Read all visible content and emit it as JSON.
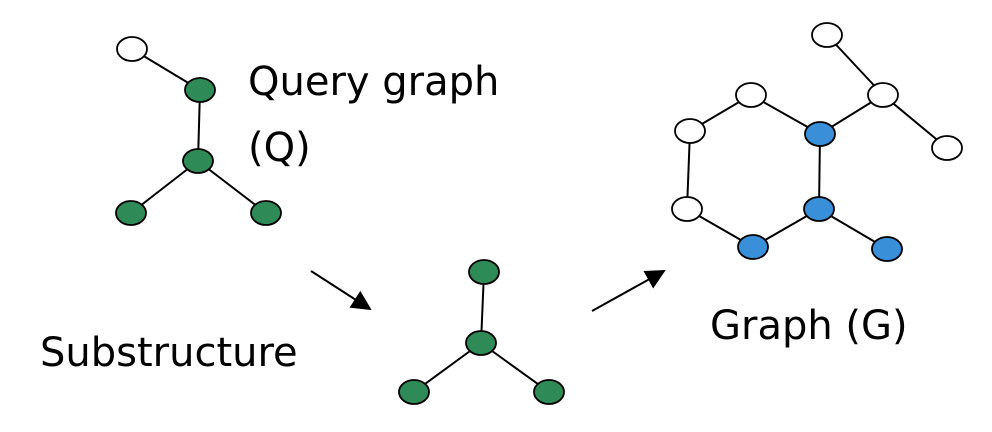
{
  "labels": {
    "query_line1": "Query graph",
    "query_line2": "(Q)",
    "substructure": "Substructure",
    "graph": "Graph (G)"
  },
  "colors": {
    "empty_node": "#ffffff",
    "query_node": "#2e8b57",
    "match_node": "#3a8fd9",
    "edge": "#000000",
    "arrow": "#000000"
  },
  "graphs": {
    "query": {
      "nodes": [
        {
          "id": "q-top",
          "role": "empty"
        },
        {
          "id": "q-upper",
          "role": "query"
        },
        {
          "id": "q-center",
          "role": "query"
        },
        {
          "id": "q-left",
          "role": "query"
        },
        {
          "id": "q-right",
          "role": "query"
        }
      ],
      "edges": [
        [
          "q-top",
          "q-upper"
        ],
        [
          "q-upper",
          "q-center"
        ],
        [
          "q-center",
          "q-left"
        ],
        [
          "q-center",
          "q-right"
        ]
      ]
    },
    "substructure": {
      "nodes": [
        {
          "id": "s-top",
          "role": "query"
        },
        {
          "id": "s-center",
          "role": "query"
        },
        {
          "id": "s-left",
          "role": "query"
        },
        {
          "id": "s-right",
          "role": "query"
        }
      ],
      "edges": [
        [
          "s-top",
          "s-center"
        ],
        [
          "s-center",
          "s-left"
        ],
        [
          "s-center",
          "s-right"
        ]
      ]
    },
    "target": {
      "nodes": [
        {
          "id": "g-top",
          "role": "empty"
        },
        {
          "id": "g-upper-left",
          "role": "empty"
        },
        {
          "id": "g-lower-left",
          "role": "empty"
        },
        {
          "id": "g-upper-right",
          "role": "match"
        },
        {
          "id": "g-lower-right",
          "role": "match"
        },
        {
          "id": "g-bottom",
          "role": "match"
        },
        {
          "id": "g-tail",
          "role": "match"
        },
        {
          "id": "g-branch",
          "role": "empty"
        },
        {
          "id": "g-branch-up",
          "role": "empty"
        },
        {
          "id": "g-branch-down",
          "role": "empty"
        }
      ],
      "edges": [
        [
          "g-top",
          "g-upper-left"
        ],
        [
          "g-upper-left",
          "g-lower-left"
        ],
        [
          "g-lower-left",
          "g-bottom"
        ],
        [
          "g-bottom",
          "g-lower-right"
        ],
        [
          "g-lower-right",
          "g-upper-right"
        ],
        [
          "g-upper-right",
          "g-top"
        ],
        [
          "g-lower-right",
          "g-tail"
        ],
        [
          "g-upper-right",
          "g-branch"
        ],
        [
          "g-branch",
          "g-branch-up"
        ],
        [
          "g-branch",
          "g-branch-down"
        ]
      ]
    }
  },
  "arrows": [
    {
      "id": "arrow-query-to-substructure"
    },
    {
      "id": "arrow-substructure-to-graph"
    }
  ]
}
